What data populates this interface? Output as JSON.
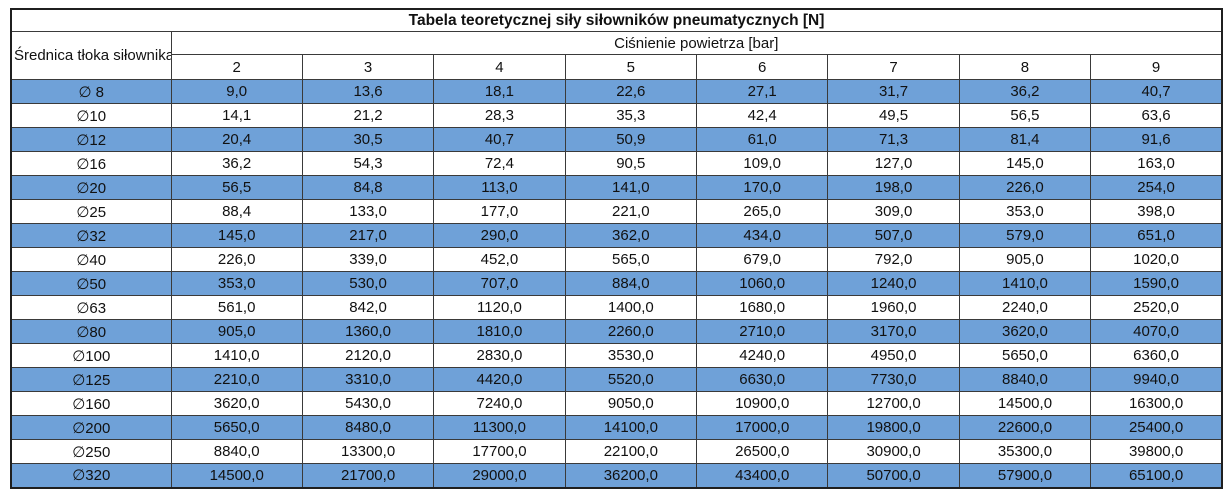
{
  "table": {
    "title": "Tabela teoretycznej siły siłowników pneumatycznych [N]",
    "row_header": "Średnica tłoka siłownika",
    "col_group_header": "Ciśnienie powietrza [bar]",
    "pressures": [
      "2",
      "3",
      "4",
      "5",
      "6",
      "7",
      "8",
      "9"
    ],
    "rows": [
      {
        "label": "∅ 8",
        "values": [
          "9,0",
          "13,6",
          "18,1",
          "22,6",
          "27,1",
          "31,7",
          "36,2",
          "40,7"
        ]
      },
      {
        "label": "∅10",
        "values": [
          "14,1",
          "21,2",
          "28,3",
          "35,3",
          "42,4",
          "49,5",
          "56,5",
          "63,6"
        ]
      },
      {
        "label": "∅12",
        "values": [
          "20,4",
          "30,5",
          "40,7",
          "50,9",
          "61,0",
          "71,3",
          "81,4",
          "91,6"
        ]
      },
      {
        "label": "∅16",
        "values": [
          "36,2",
          "54,3",
          "72,4",
          "90,5",
          "109,0",
          "127,0",
          "145,0",
          "163,0"
        ]
      },
      {
        "label": "∅20",
        "values": [
          "56,5",
          "84,8",
          "113,0",
          "141,0",
          "170,0",
          "198,0",
          "226,0",
          "254,0"
        ]
      },
      {
        "label": "∅25",
        "values": [
          "88,4",
          "133,0",
          "177,0",
          "221,0",
          "265,0",
          "309,0",
          "353,0",
          "398,0"
        ]
      },
      {
        "label": "∅32",
        "values": [
          "145,0",
          "217,0",
          "290,0",
          "362,0",
          "434,0",
          "507,0",
          "579,0",
          "651,0"
        ]
      },
      {
        "label": "∅40",
        "values": [
          "226,0",
          "339,0",
          "452,0",
          "565,0",
          "679,0",
          "792,0",
          "905,0",
          "1020,0"
        ]
      },
      {
        "label": "∅50",
        "values": [
          "353,0",
          "530,0",
          "707,0",
          "884,0",
          "1060,0",
          "1240,0",
          "1410,0",
          "1590,0"
        ]
      },
      {
        "label": "∅63",
        "values": [
          "561,0",
          "842,0",
          "1120,0",
          "1400,0",
          "1680,0",
          "1960,0",
          "2240,0",
          "2520,0"
        ]
      },
      {
        "label": "∅80",
        "values": [
          "905,0",
          "1360,0",
          "1810,0",
          "2260,0",
          "2710,0",
          "3170,0",
          "3620,0",
          "4070,0"
        ]
      },
      {
        "label": "∅100",
        "values": [
          "1410,0",
          "2120,0",
          "2830,0",
          "3530,0",
          "4240,0",
          "4950,0",
          "5650,0",
          "6360,0"
        ]
      },
      {
        "label": "∅125",
        "values": [
          "2210,0",
          "3310,0",
          "4420,0",
          "5520,0",
          "6630,0",
          "7730,0",
          "8840,0",
          "9940,0"
        ]
      },
      {
        "label": "∅160",
        "values": [
          "3620,0",
          "5430,0",
          "7240,0",
          "9050,0",
          "10900,0",
          "12700,0",
          "14500,0",
          "16300,0"
        ]
      },
      {
        "label": "∅200",
        "values": [
          "5650,0",
          "8480,0",
          "11300,0",
          "14100,0",
          "17000,0",
          "19800,0",
          "22600,0",
          "25400,0"
        ]
      },
      {
        "label": "∅250",
        "values": [
          "8840,0",
          "13300,0",
          "17700,0",
          "22100,0",
          "26500,0",
          "30900,0",
          "35300,0",
          "39800,0"
        ]
      },
      {
        "label": "∅320",
        "values": [
          "14500,0",
          "21700,0",
          "29000,0",
          "36200,0",
          "43400,0",
          "50700,0",
          "57900,0",
          "65100,0"
        ]
      }
    ]
  },
  "colors": {
    "row_highlight_blue": "#6fa1d8",
    "row_white": "#ffffff",
    "grid_border": "#3a3a3a",
    "outer_border": "#1f1f1f",
    "text": "#111111"
  },
  "chart_data": {
    "type": "table",
    "title": "Tabela teoretycznej siły siłowników pneumatycznych [N]",
    "xlabel": "Ciśnienie powietrza [bar]",
    "ylabel": "Średnica tłoka siłownika",
    "categories": [
      2,
      3,
      4,
      5,
      6,
      7,
      8,
      9
    ],
    "series": [
      {
        "name": "∅8",
        "values": [
          9.0,
          13.6,
          18.1,
          22.6,
          27.1,
          31.7,
          36.2,
          40.7
        ]
      },
      {
        "name": "∅10",
        "values": [
          14.1,
          21.2,
          28.3,
          35.3,
          42.4,
          49.5,
          56.5,
          63.6
        ]
      },
      {
        "name": "∅12",
        "values": [
          20.4,
          30.5,
          40.7,
          50.9,
          61.0,
          71.3,
          81.4,
          91.6
        ]
      },
      {
        "name": "∅16",
        "values": [
          36.2,
          54.3,
          72.4,
          90.5,
          109.0,
          127.0,
          145.0,
          163.0
        ]
      },
      {
        "name": "∅20",
        "values": [
          56.5,
          84.8,
          113.0,
          141.0,
          170.0,
          198.0,
          226.0,
          254.0
        ]
      },
      {
        "name": "∅25",
        "values": [
          88.4,
          133.0,
          177.0,
          221.0,
          265.0,
          309.0,
          353.0,
          398.0
        ]
      },
      {
        "name": "∅32",
        "values": [
          145.0,
          217.0,
          290.0,
          362.0,
          434.0,
          507.0,
          579.0,
          651.0
        ]
      },
      {
        "name": "∅40",
        "values": [
          226.0,
          339.0,
          452.0,
          565.0,
          679.0,
          792.0,
          905.0,
          1020.0
        ]
      },
      {
        "name": "∅50",
        "values": [
          353.0,
          530.0,
          707.0,
          884.0,
          1060.0,
          1240.0,
          1410.0,
          1590.0
        ]
      },
      {
        "name": "∅63",
        "values": [
          561.0,
          842.0,
          1120.0,
          1400.0,
          1680.0,
          1960.0,
          2240.0,
          2520.0
        ]
      },
      {
        "name": "∅80",
        "values": [
          905.0,
          1360.0,
          1810.0,
          2260.0,
          2710.0,
          3170.0,
          3620.0,
          4070.0
        ]
      },
      {
        "name": "∅100",
        "values": [
          1410.0,
          2120.0,
          2830.0,
          3530.0,
          4240.0,
          4950.0,
          5650.0,
          6360.0
        ]
      },
      {
        "name": "∅125",
        "values": [
          2210.0,
          3310.0,
          4420.0,
          5520.0,
          6630.0,
          7730.0,
          8840.0,
          9940.0
        ]
      },
      {
        "name": "∅160",
        "values": [
          3620.0,
          5430.0,
          7240.0,
          9050.0,
          10900.0,
          12700.0,
          14500.0,
          16300.0
        ]
      },
      {
        "name": "∅200",
        "values": [
          5650.0,
          8480.0,
          11300.0,
          14100.0,
          17000.0,
          19800.0,
          22600.0,
          25400.0
        ]
      },
      {
        "name": "∅250",
        "values": [
          8840.0,
          13300.0,
          17700.0,
          22100.0,
          26500.0,
          30900.0,
          35300.0,
          39800.0
        ]
      },
      {
        "name": "∅320",
        "values": [
          14500.0,
          21700.0,
          29000.0,
          36200.0,
          43400.0,
          50700.0,
          57900.0,
          65100.0
        ]
      }
    ],
    "legend_position": "none",
    "grid": true,
    "notes": "Rows alternate highlight: odd rows (∅8, ∅12, ∅20, ...) filled #6fa1d8, even rows white"
  }
}
